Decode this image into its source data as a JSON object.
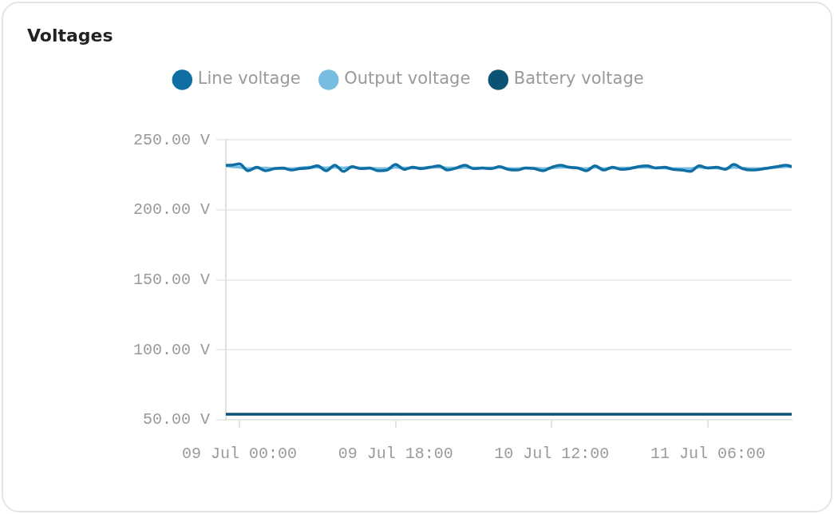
{
  "chart_data": {
    "type": "line",
    "title": "Voltages",
    "legend": "top",
    "grid": "y",
    "marker": "none",
    "x": [
      "--07-08T22:26",
      "--07-08T23:00",
      "--07-09T00:00",
      "--07-09T01:00",
      "--07-09T02:00",
      "--07-09T03:00",
      "--07-09T04:00",
      "--07-09T05:00",
      "--07-09T06:00",
      "--07-09T07:00",
      "--07-09T08:00",
      "--07-09T09:00",
      "--07-09T10:00",
      "--07-09T11:00",
      "--07-09T12:00",
      "--07-09T13:00",
      "--07-09T14:00",
      "--07-09T15:00",
      "--07-09T16:00",
      "--07-09T17:00",
      "--07-09T18:00",
      "--07-09T19:00",
      "--07-09T20:00",
      "--07-09T21:00",
      "--07-09T22:00",
      "--07-09T23:00",
      "--07-10T00:00",
      "--07-10T01:00",
      "--07-10T02:00",
      "--07-10T03:00",
      "--07-10T04:00",
      "--07-10T05:00",
      "--07-10T06:00",
      "--07-10T07:00",
      "--07-10T08:00",
      "--07-10T09:00",
      "--07-10T10:00",
      "--07-10T11:00",
      "--07-10T12:00",
      "--07-10T13:00",
      "--07-10T14:00",
      "--07-10T15:00",
      "--07-10T16:00",
      "--07-10T17:00",
      "--07-10T18:00",
      "--07-10T19:00",
      "--07-10T20:00",
      "--07-10T21:00",
      "--07-10T22:00",
      "--07-10T23:00",
      "--07-11T00:00",
      "--07-11T01:00",
      "--07-11T02:00",
      "--07-11T03:00",
      "--07-11T04:00",
      "--07-11T05:00",
      "--07-11T06:00",
      "--07-11T07:00",
      "--07-11T08:00",
      "--07-11T09:00",
      "--07-11T10:00",
      "--07-11T11:00",
      "--07-11T12:00",
      "--07-11T13:00",
      "--07-11T14:00",
      "--07-11T15:00",
      "--07-11T15:40"
    ],
    "xlim": [
      "--07-08T22:26",
      "--07-11T15:40"
    ],
    "xticks": [
      {
        "value": "--07-09T00:00",
        "label": "09 Jul 00:00"
      },
      {
        "value": "--07-09T18:00",
        "label": "09 Jul 18:00"
      },
      {
        "value": "--07-10T12:00",
        "label": "10 Jul 12:00"
      },
      {
        "value": "--07-11T06:00",
        "label": "11 Jul 06:00"
      }
    ],
    "ylim": [
      50,
      250
    ],
    "yticks": [
      {
        "value": 50,
        "label": "50.00 V"
      },
      {
        "value": 100,
        "label": "100.00 V"
      },
      {
        "value": 150,
        "label": "150.00 V"
      },
      {
        "value": 200,
        "label": "200.00 V"
      },
      {
        "value": 250,
        "label": "250.00 V"
      }
    ],
    "series": [
      {
        "name": "Line voltage",
        "color": "#0f6fa5",
        "values": [
          232,
          232,
          233,
          228,
          230.5,
          228,
          229.5,
          230,
          228.5,
          229.5,
          230,
          231.5,
          228,
          232,
          227.5,
          231,
          229.5,
          230,
          228,
          228.5,
          232.5,
          229,
          230.5,
          229.5,
          230.5,
          231.5,
          228.5,
          230,
          232,
          229.5,
          230,
          229.5,
          231,
          229,
          228.5,
          230,
          229.5,
          228,
          230.5,
          232,
          230.5,
          230,
          228,
          231.5,
          228.5,
          230.5,
          229,
          229.5,
          231,
          231.5,
          230,
          230.5,
          229,
          228.5,
          227.5,
          231.5,
          230,
          230.5,
          229,
          232.5,
          229.5,
          228.5,
          229,
          230,
          231,
          232,
          231
        ]
      },
      {
        "name": "Output voltage",
        "color": "#76bde0",
        "values": [
          231.5,
          231,
          230.5,
          229.5,
          230,
          230,
          229.5,
          229.5,
          229.5,
          230,
          230.5,
          230.5,
          230,
          230.5,
          230,
          230.5,
          230,
          230,
          229.5,
          229.5,
          230.5,
          230,
          230,
          230,
          230.5,
          230.5,
          230,
          230,
          230.5,
          230,
          230,
          230,
          230.5,
          229.5,
          229.5,
          230,
          230,
          229.5,
          230,
          230.5,
          230.5,
          230,
          229.5,
          230.5,
          229.5,
          230,
          230,
          230,
          230.5,
          230.5,
          230,
          230,
          229.5,
          229.5,
          229.5,
          230.5,
          230,
          230,
          229.5,
          230.5,
          230,
          229.5,
          229.5,
          230,
          230.5,
          231,
          231
        ]
      },
      {
        "name": "Battery voltage",
        "color": "#0b5275",
        "values": [
          54,
          54,
          54,
          54,
          54,
          54,
          54,
          54,
          54,
          54,
          54,
          54,
          54,
          54,
          54,
          54,
          54,
          54,
          54,
          54,
          54,
          54,
          54,
          54,
          54,
          54,
          54,
          54,
          54,
          54,
          54,
          54,
          54,
          54,
          54,
          54,
          54,
          54,
          54,
          54,
          54,
          54,
          54,
          54,
          54,
          54,
          54,
          54,
          54,
          54,
          54,
          54,
          54,
          54,
          54,
          54,
          54,
          54,
          54,
          54,
          54,
          54,
          54,
          54,
          54,
          54,
          54
        ]
      }
    ]
  }
}
